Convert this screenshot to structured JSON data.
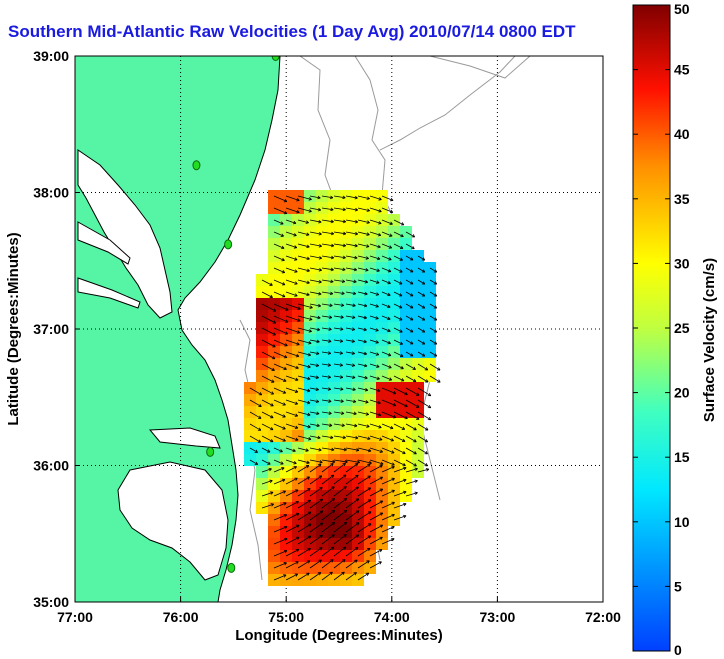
{
  "title": "Southern Mid-Atlantic Raw Velocities (1 Day Avg) 2010/07/14 0800 EDT",
  "map": {
    "xlabel": "Longitude (Degrees:Minutes)",
    "ylabel": "Latitude (Degrees:Minutes)",
    "x_ticks": [
      "77:00",
      "76:00",
      "75:00",
      "74:00",
      "73:00",
      "72:00"
    ],
    "x_tick_values": [
      -77,
      -76,
      -75,
      -74,
      -73,
      -72
    ],
    "y_ticks": [
      "39:00",
      "38:00",
      "37:00",
      "36:00",
      "35:00"
    ],
    "y_tick_values": [
      39,
      38,
      37,
      36,
      35
    ],
    "xlim": [
      -77,
      -72
    ],
    "ylim": [
      35,
      39
    ],
    "grid": "dotted",
    "land_color": "#55f5a5",
    "water_color": "#ffffff",
    "bathymetry_color": "#9a9a9a",
    "coastline_color": "#000000",
    "station_color": "#22dd22",
    "stations": [
      {
        "lon": -75.1,
        "lat": 39.0
      },
      {
        "lon": -75.85,
        "lat": 38.2
      },
      {
        "lon": -75.55,
        "lat": 37.62
      },
      {
        "lon": -75.72,
        "lat": 36.1
      },
      {
        "lon": -75.52,
        "lat": 35.25
      }
    ]
  },
  "colorbar": {
    "label": "Surface Velocity (cm/s)",
    "ticks": [
      "0",
      "5",
      "10",
      "15",
      "20",
      "25",
      "30",
      "35",
      "40",
      "45",
      "50"
    ],
    "range": [
      0,
      50
    ],
    "colormap": "jet"
  }
}
